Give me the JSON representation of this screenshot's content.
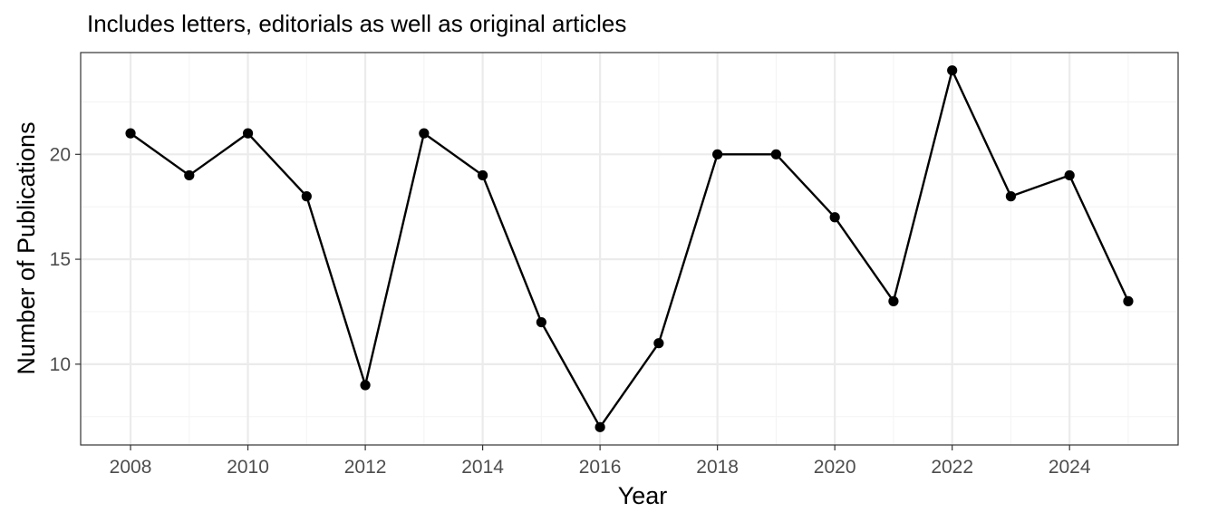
{
  "chart_data": {
    "type": "line",
    "title": "",
    "subtitle": "Includes letters, editorials as well as original articles",
    "xlabel": "Year",
    "ylabel": "Number of Publications",
    "x": [
      2008,
      2009,
      2010,
      2011,
      2012,
      2013,
      2014,
      2015,
      2016,
      2017,
      2018,
      2019,
      2020,
      2021,
      2022,
      2023,
      2024,
      2025
    ],
    "series": [
      {
        "values": [
          21,
          19,
          21,
          18,
          9,
          21,
          19,
          12,
          7,
          11,
          20,
          20,
          17,
          13,
          24,
          18,
          19,
          13
        ]
      }
    ],
    "xlim": [
      2007.15,
      2025.85
    ],
    "ylim": [
      6.15,
      24.85
    ],
    "x_ticks": [
      "2008",
      "2010",
      "2012",
      "2014",
      "2016",
      "2018",
      "2020",
      "2022",
      "2024"
    ],
    "y_ticks": [
      "10",
      "15",
      "20"
    ],
    "grid": true,
    "legend": "none",
    "colors": {
      "line": "#000000",
      "points": "#000000",
      "grid_major": "#ebebeb",
      "grid_minor": "#f4f4f4",
      "panel_border": "#333333",
      "tick_label": "#4d4d4d"
    }
  }
}
